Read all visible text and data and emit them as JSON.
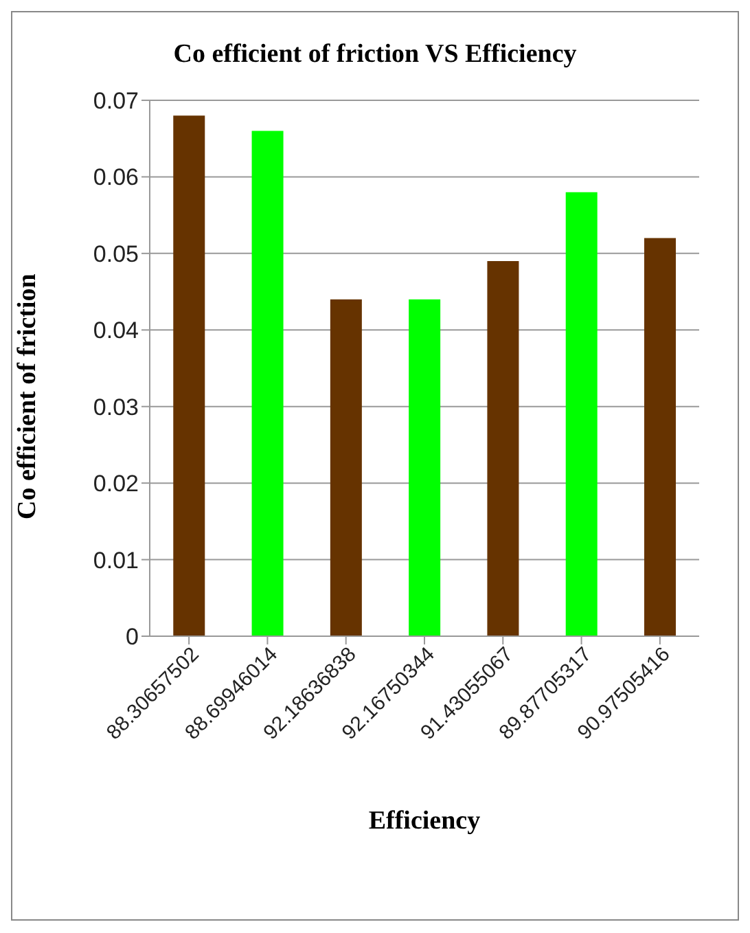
{
  "chart_data": {
    "type": "bar",
    "title": "Co efficient of friction VS Efficiency",
    "xlabel": "Efficiency",
    "ylabel": "Co efficient of friction",
    "categories": [
      "88.30657502",
      "88.69946014",
      "92.18636838",
      "92.16750344",
      "91.43055067",
      "89.87705317",
      "90.97505416"
    ],
    "values": [
      0.068,
      0.066,
      0.044,
      0.044,
      0.049,
      0.058,
      0.052
    ],
    "colors": [
      "#663300",
      "#00ff00",
      "#663300",
      "#00ff00",
      "#663300",
      "#00ff00",
      "#663300"
    ],
    "ylim": [
      0,
      0.07
    ],
    "yticks": [
      0,
      0.01,
      0.02,
      0.03,
      0.04,
      0.05,
      0.06,
      0.07
    ],
    "grid": "y"
  }
}
